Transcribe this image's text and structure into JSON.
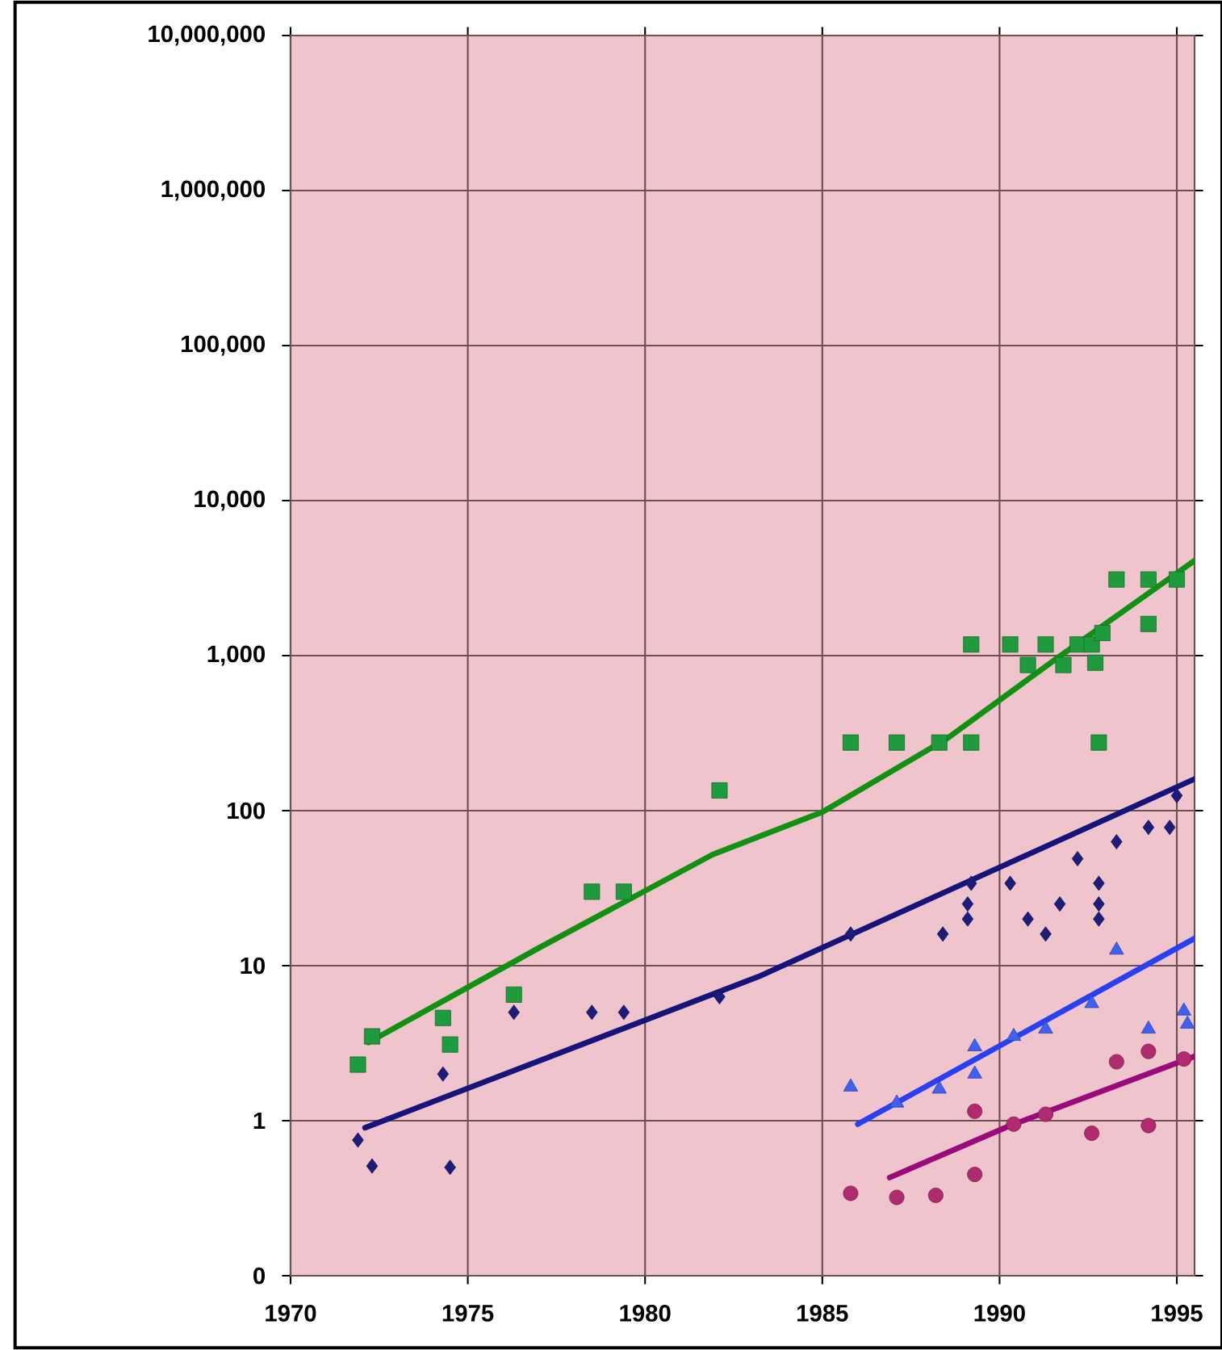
{
  "chart_data": {
    "type": "scatter",
    "log": "y",
    "grid": true,
    "xlim": [
      1970,
      1995.5
    ],
    "xticks": [
      1970,
      1975,
      1980,
      1985,
      1990,
      1995
    ],
    "ylim": [
      0.1,
      10000000
    ],
    "yticks": [
      {
        "value": 0.1,
        "label": "0"
      },
      1,
      10,
      100,
      {
        "value": 1000,
        "label": "1,000"
      },
      {
        "value": 10000,
        "label": "10,000"
      },
      {
        "value": 100000,
        "label": "100,000"
      },
      {
        "value": 1000000,
        "label": "1,000,000"
      },
      {
        "value": 10000000,
        "label": "10,000,000"
      }
    ],
    "series": [
      {
        "marker": "square",
        "color": "#1f9a3c",
        "x": [
          1971.9,
          1972.3,
          1974.3,
          1974.5,
          1976.3,
          1978.5,
          1979.4,
          1982.1,
          1985.8,
          1987.1,
          1988.3,
          1989.2,
          1989.2,
          1990.3,
          1990.8,
          1991.3,
          1991.8,
          1992.2,
          1992.6,
          1992.9,
          1992.7,
          1992.8,
          1993.3,
          1994.2,
          1994.2,
          1995.0
        ],
        "values": [
          2.3,
          3.5,
          4.6,
          3.1,
          6.5,
          30,
          30,
          135,
          275,
          275,
          275,
          275,
          1180,
          1180,
          870,
          1180,
          870,
          1180,
          1180,
          1400,
          900,
          275,
          3100,
          3100,
          1600,
          3100
        ]
      },
      {
        "marker": "diamond",
        "color": "#1c1c7a",
        "x": [
          1971.9,
          1972.3,
          1974.3,
          1974.5,
          1976.3,
          1978.5,
          1979.4,
          1982.1,
          1985.8,
          1988.4,
          1989.1,
          1989.1,
          1989.2,
          1990.3,
          1990.8,
          1991.3,
          1991.7,
          1992.2,
          1992.8,
          1992.8,
          1992.8,
          1993.3,
          1994.2,
          1994.8,
          1995.0
        ],
        "values": [
          0.75,
          0.51,
          2.0,
          0.5,
          5,
          5,
          5,
          6.3,
          16,
          16,
          20,
          25,
          34,
          34,
          20,
          16,
          25,
          49,
          34,
          25,
          20,
          63,
          78,
          78,
          125
        ]
      },
      {
        "marker": "triangle",
        "color": "#4060f0",
        "x": [
          1985.8,
          1987.1,
          1988.3,
          1989.3,
          1989.3,
          1990.4,
          1991.3,
          1992.6,
          1993.3,
          1994.2,
          1995.2,
          1995.3
        ],
        "values": [
          1.65,
          1.3,
          1.6,
          2.0,
          3.0,
          3.5,
          3.9,
          5.7,
          12.6,
          3.9,
          5.1,
          4.2
        ]
      },
      {
        "marker": "circle",
        "color": "#b02a70",
        "x": [
          1985.8,
          1987.1,
          1988.2,
          1989.3,
          1989.3,
          1990.4,
          1991.3,
          1992.6,
          1993.3,
          1994.2,
          1994.2,
          1995.2
        ],
        "values": [
          0.34,
          0.32,
          0.33,
          0.45,
          1.15,
          0.95,
          1.1,
          0.83,
          2.4,
          2.8,
          0.93,
          2.5
        ]
      },
      {
        "type": "line",
        "color": "#129012",
        "x": [
          1972.2,
          1977,
          1981.9,
          1985,
          1988.5,
          1991.6,
          1995.5
        ],
        "values": [
          3.2,
          13,
          52,
          98,
          290,
          955,
          4100
        ]
      },
      {
        "type": "line",
        "color": "#14147a",
        "x": [
          1972.1,
          1983.2,
          1995.5
        ],
        "values": [
          0.9,
          8.5,
          160
        ]
      },
      {
        "type": "line",
        "color": "#2a40f0",
        "x": [
          1986.0,
          1995.5
        ],
        "values": [
          0.95,
          15
        ]
      },
      {
        "type": "line",
        "color": "#9a0a7a",
        "x": [
          1986.9,
          1990.3,
          1995.5
        ],
        "values": [
          0.43,
          0.93,
          2.6
        ]
      }
    ]
  }
}
